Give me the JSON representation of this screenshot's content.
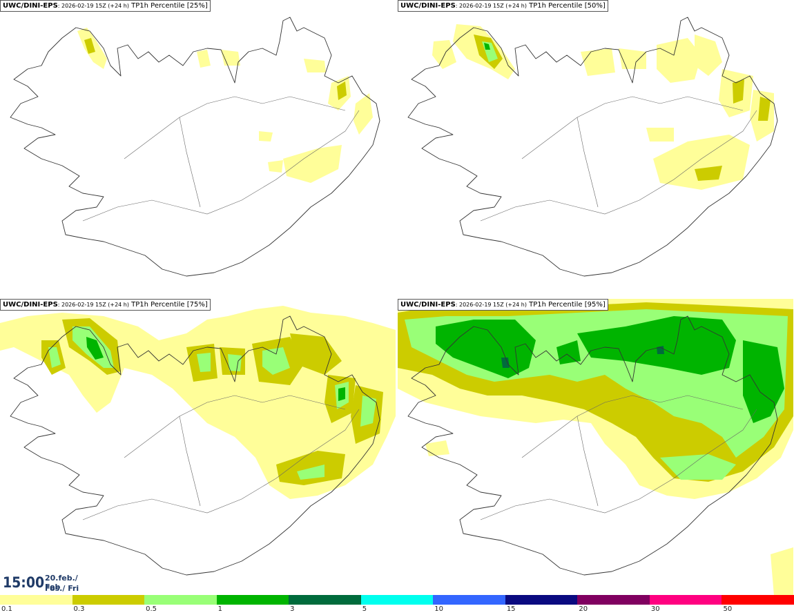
{
  "panels": [
    {
      "model": "UWC/DINI-EPS",
      "run": ": 2026-02-19 15Z (+24 h)",
      "field": " TP1h Percentile [25%]"
    },
    {
      "model": "UWC/DINI-EPS",
      "run": ": 2026-02-19 15Z (+24 h)",
      "field": " TP1h Percentile [50%]"
    },
    {
      "model": "UWC/DINI-EPS",
      "run": ": 2026-02-19 15Z (+24 h)",
      "field": " TP1h Percentile [75%]"
    },
    {
      "model": "UWC/DINI-EPS",
      "run": ": 2026-02-19 15Z (+24 h)",
      "field": " TP1h Percentile [95%]"
    }
  ],
  "valid_time": {
    "time": "15:00",
    "date": "20.feb./ Feb",
    "day": "Fös./ Fri"
  },
  "legend": {
    "ticks": [
      "0.1",
      "0.3",
      "0.5",
      "1",
      "3",
      "5",
      "10",
      "15",
      "20",
      "30",
      "50"
    ],
    "colors": [
      "#fffe99",
      "#cccc00",
      "#99ff77",
      "#00b400",
      "#006b3c",
      "#00ffee",
      "#3366ff",
      "#0a0a80",
      "#800060",
      "#ff0080",
      "#ff0000"
    ]
  },
  "colors": {
    "title_text": "#000000",
    "time_text": "#1f3a67",
    "coast": "#333333"
  }
}
